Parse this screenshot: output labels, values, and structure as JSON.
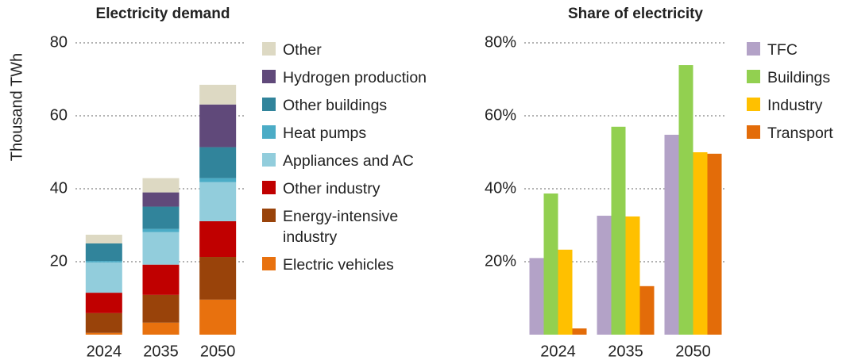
{
  "chart_data": [
    {
      "type": "stacked_bar",
      "title": "Electricity demand",
      "y_label": "Thousand TWh",
      "categories": [
        "2024",
        "2035",
        "2050"
      ],
      "ylim": [
        0,
        80
      ],
      "yticks": [
        20,
        40,
        60,
        80
      ],
      "grid": true,
      "series": [
        {
          "name": "Electric vehicles",
          "color": "#e8710e",
          "values": [
            0.5,
            3.3,
            9.6
          ]
        },
        {
          "name": "Energy-intensive industry",
          "color": "#99430a",
          "values": [
            5.4,
            7.6,
            11.7
          ]
        },
        {
          "name": "Other industry",
          "color": "#c00000",
          "values": [
            5.6,
            8.3,
            9.8
          ]
        },
        {
          "name": "Appliances and AC",
          "color": "#92cddc",
          "values": [
            8.3,
            8.9,
            10.7
          ]
        },
        {
          "name": "Heat pumps",
          "color": "#4bacc6",
          "values": [
            0.4,
            0.9,
            1.1
          ]
        },
        {
          "name": "Other buildings",
          "color": "#31849b",
          "values": [
            4.8,
            6.1,
            8.5
          ]
        },
        {
          "name": "Hydrogen production",
          "color": "#60497a",
          "values": [
            0,
            3.9,
            11.7
          ]
        },
        {
          "name": "Other",
          "color": "#ddd9c3",
          "values": [
            2.4,
            3.9,
            5.4
          ]
        }
      ]
    },
    {
      "type": "bar",
      "title": "Share of electricity",
      "categories": [
        "2024",
        "2035",
        "2050"
      ],
      "ylim": [
        0,
        80
      ],
      "yticks": [
        {
          "value": 20,
          "label": "20%"
        },
        {
          "value": 40,
          "label": "40%"
        },
        {
          "value": 60,
          "label": "60%"
        },
        {
          "value": 80,
          "label": "80%"
        }
      ],
      "grid": true,
      "series": [
        {
          "name": "TFC",
          "color": "#b3a2c7",
          "values": [
            21,
            32.6,
            54.8
          ]
        },
        {
          "name": "Buildings",
          "color": "#92d050",
          "values": [
            38.7,
            57,
            73.9
          ]
        },
        {
          "name": "Industry",
          "color": "#ffc000",
          "values": [
            23.3,
            32.4,
            50
          ]
        },
        {
          "name": "Transport",
          "color": "#e36c09",
          "values": [
            1.7,
            13.3,
            49.6
          ]
        }
      ]
    }
  ]
}
